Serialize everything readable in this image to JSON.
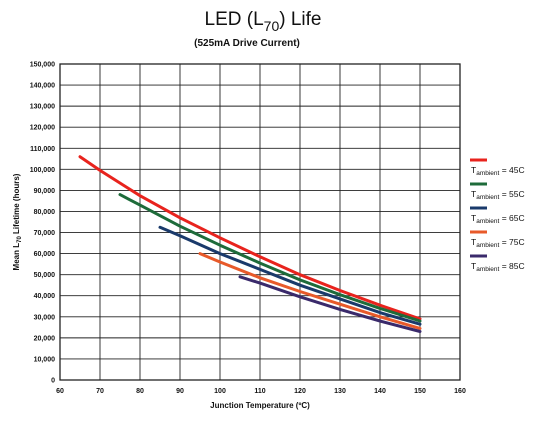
{
  "chart_data": {
    "type": "line",
    "title": {
      "main": "LED (L",
      "sub": "70",
      "after": ") Life"
    },
    "subtitle": "(525mA Drive Current)",
    "xlabel": "Junction Temperature (ºC)",
    "ylabel": {
      "before": "Mean L",
      "sub": "70",
      "after": " Lifetime (hours)"
    },
    "xlim": [
      60,
      160
    ],
    "ylim": [
      0,
      150000
    ],
    "x_ticks": [
      60,
      70,
      80,
      90,
      100,
      110,
      120,
      130,
      140,
      150,
      160
    ],
    "y_ticks": [
      0,
      10000,
      20000,
      30000,
      40000,
      50000,
      60000,
      70000,
      80000,
      90000,
      100000,
      110000,
      120000,
      130000,
      140000,
      150000
    ],
    "y_tick_labels": [
      "0",
      "10,000",
      "20,000",
      "30,000",
      "40,000",
      "50,000",
      "60,000",
      "70,000",
      "80,000",
      "90,000",
      "100,000",
      "110,000",
      "120,000",
      "130,000",
      "140,000",
      "150,000"
    ],
    "grid": true,
    "legend_position": "right",
    "series": [
      {
        "name": "T ambient = 45C",
        "label_main": "T",
        "label_sub": "ambient",
        "label_after": " = 45C",
        "color": "#e8231d",
        "x": [
          65,
          70,
          80,
          90,
          100,
          110,
          120,
          130,
          140,
          150
        ],
        "y": [
          106000,
          99500,
          87500,
          77000,
          67500,
          58500,
          50000,
          42500,
          35500,
          29000
        ]
      },
      {
        "name": "T ambient = 55C",
        "label_main": "T",
        "label_sub": "ambient",
        "label_after": " = 55C",
        "color": "#1e6b3a",
        "x": [
          75,
          80,
          90,
          100,
          110,
          120,
          130,
          140,
          150
        ],
        "y": [
          88000,
          83000,
          73000,
          64000,
          55500,
          47500,
          40500,
          34000,
          28000
        ]
      },
      {
        "name": "T ambient = 65C",
        "label_main": "T",
        "label_sub": "ambient",
        "label_after": " = 65C",
        "color": "#1a3a6b",
        "x": [
          85,
          90,
          100,
          110,
          120,
          130,
          140,
          150
        ],
        "y": [
          72500,
          68500,
          60000,
          52500,
          45000,
          38500,
          32000,
          26500
        ]
      },
      {
        "name": "T ambient = 75C",
        "label_main": "T",
        "label_sub": "ambient",
        "label_after": " = 75C",
        "color": "#e85a2a",
        "x": [
          95,
          100,
          110,
          120,
          130,
          140,
          150
        ],
        "y": [
          60000,
          56000,
          48500,
          42000,
          36000,
          30000,
          24500
        ]
      },
      {
        "name": "T ambient = 85C",
        "label_main": "T",
        "label_sub": "ambient",
        "label_after": " = 85C",
        "color": "#3a2a6b",
        "x": [
          105,
          110,
          120,
          130,
          140,
          150
        ],
        "y": [
          49000,
          46000,
          39500,
          33500,
          28000,
          23000
        ]
      }
    ]
  }
}
